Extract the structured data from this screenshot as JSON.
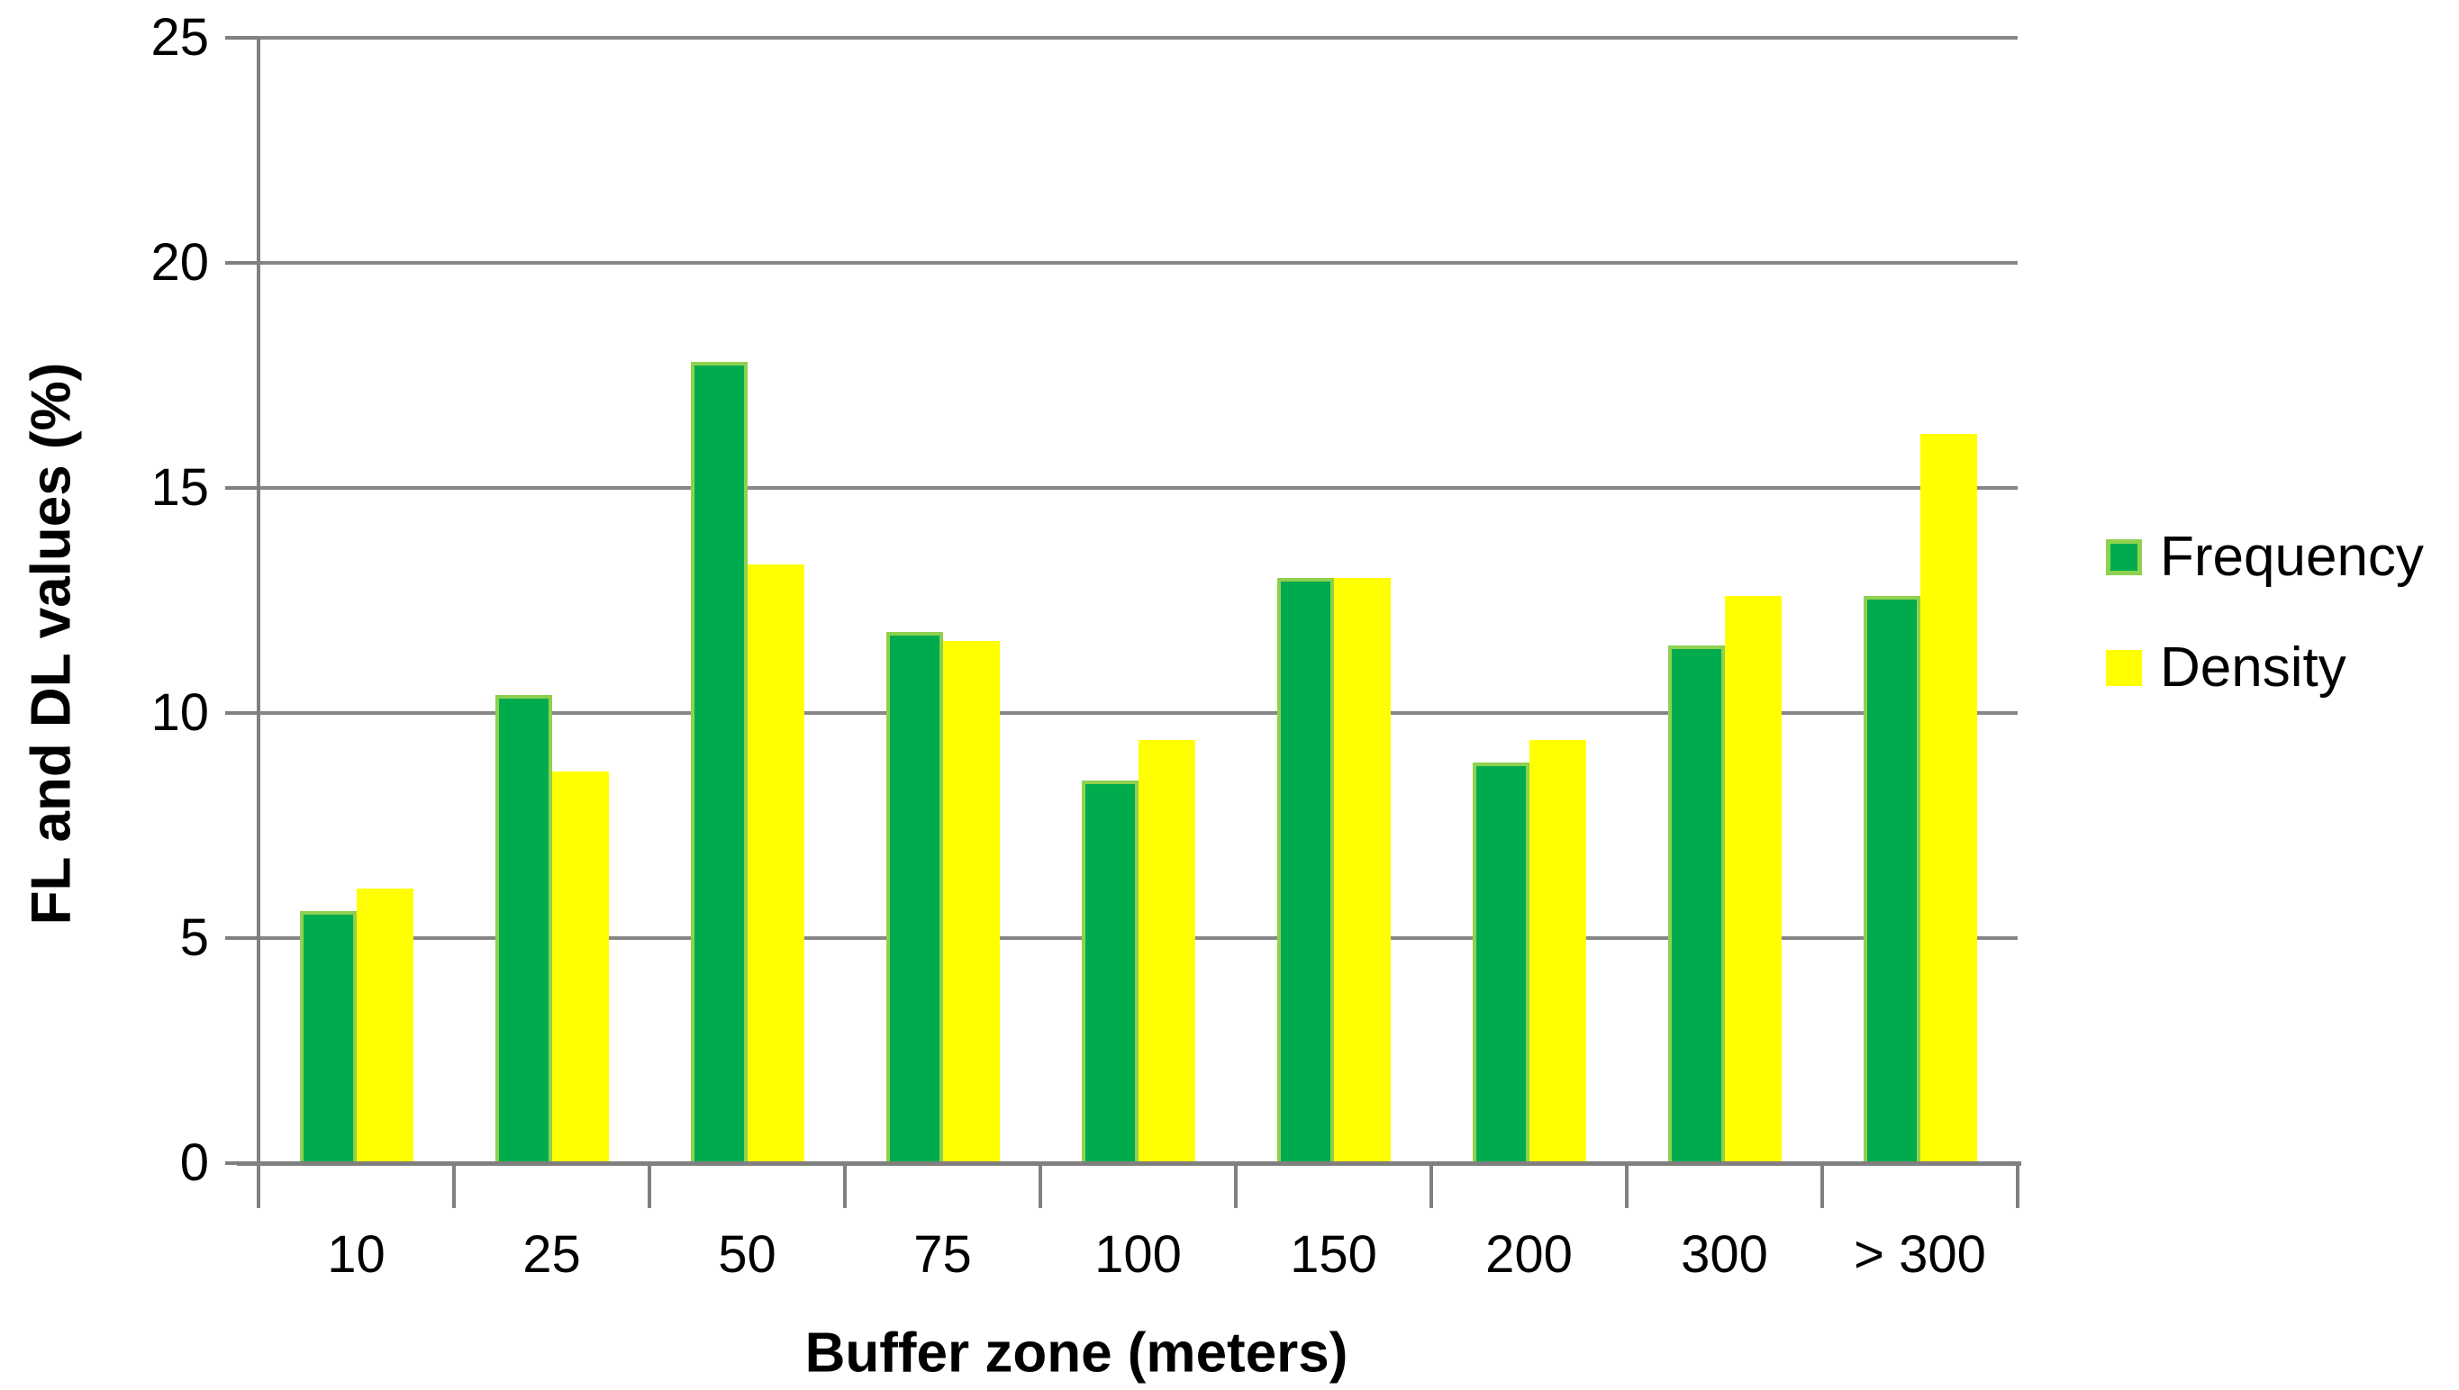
{
  "chart_data": {
    "type": "bar",
    "title": "",
    "categories": [
      "10",
      "25",
      "50",
      "75",
      "100",
      "150",
      "200",
      "300",
      "> 300"
    ],
    "series": [
      {
        "name": "Frequency",
        "color": "#00AB4E",
        "border_color": "#8FD14F",
        "values": [
          5.6,
          10.4,
          17.8,
          11.8,
          8.5,
          13.0,
          8.9,
          11.5,
          12.6
        ]
      },
      {
        "name": "Density",
        "color": "#FFFF00",
        "border_color": "#FFFF00",
        "values": [
          6.1,
          8.7,
          13.3,
          11.6,
          9.4,
          13.0,
          9.4,
          12.6,
          16.2
        ]
      }
    ],
    "xlabel": "Buffer zone (meters)",
    "ylabel": "FL and DL values (%)",
    "ylim": [
      0,
      25
    ],
    "yticks": [
      0,
      5,
      10,
      15,
      20,
      25
    ],
    "grid": true,
    "legend_position": "right"
  },
  "colors": {
    "background": "#FFFFFF",
    "gridline": "#878787",
    "axis": "#808080",
    "text": "#000000"
  }
}
